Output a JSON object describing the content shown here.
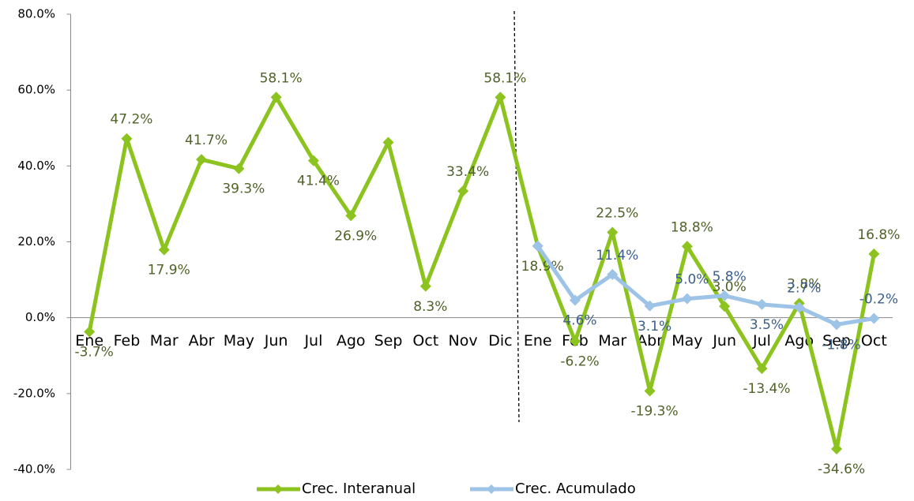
{
  "chart_data": {
    "type": "line",
    "categories": [
      "Ene",
      "Feb",
      "Mar",
      "Abr",
      "May",
      "Jun",
      "Jul",
      "Ago",
      "Sep",
      "Oct",
      "Nov",
      "Dic",
      "Ene",
      "Feb",
      "Mar",
      "Abr",
      "May",
      "Jun",
      "Jul",
      "Ago",
      "Sep",
      "Oct"
    ],
    "series": [
      {
        "name": "Crec. Interanual",
        "color": "#8cc31f",
        "label_color": "#4f6228",
        "values": [
          -3.7,
          47.2,
          17.9,
          41.7,
          39.3,
          58.1,
          41.4,
          26.9,
          46.2,
          8.3,
          33.4,
          58.1,
          18.9,
          -6.2,
          22.5,
          -19.3,
          18.8,
          3.0,
          -13.4,
          3.8,
          -34.6,
          16.8
        ],
        "value_labels": [
          "-3.7%",
          "47.2%",
          "17.9%",
          "41.7%",
          "39.3%",
          "58.1%",
          "41.4%",
          "26.9%",
          null,
          "8.3%",
          "33.4%",
          "58.1%",
          "18.9%",
          "-6.2%",
          "22.5%",
          "-19.3%",
          "18.8%",
          "3.0%",
          "-13.4%",
          "3.8%",
          "-34.6%",
          "16.8%"
        ]
      },
      {
        "name": "Crec. Acumulado",
        "color": "#9dc3e6",
        "label_color": "#3b5f8a",
        "values": [
          null,
          null,
          null,
          null,
          null,
          null,
          null,
          null,
          null,
          null,
          null,
          null,
          18.9,
          4.6,
          11.4,
          3.1,
          5.0,
          5.8,
          3.5,
          2.7,
          -1.8,
          -0.2
        ],
        "value_labels": [
          null,
          null,
          null,
          null,
          null,
          null,
          null,
          null,
          null,
          null,
          null,
          null,
          null,
          "4.6%",
          "11.4%",
          "3.1%",
          "5.0%",
          "5.8%",
          "3.5%",
          "2.7%",
          "-1.8%",
          "-0.2%"
        ]
      }
    ],
    "ylim": [
      -40,
      80
    ],
    "yticks": [
      {
        "value": -40,
        "label": "-40.0%"
      },
      {
        "value": -20,
        "label": "-20.0%"
      },
      {
        "value": 0,
        "label": "0.0%"
      },
      {
        "value": 20,
        "label": "20.0%"
      },
      {
        "value": 40,
        "label": "40.0%"
      },
      {
        "value": 60,
        "label": "60.0%"
      },
      {
        "value": 80,
        "label": "80.0%"
      }
    ],
    "legend": "bottom"
  }
}
